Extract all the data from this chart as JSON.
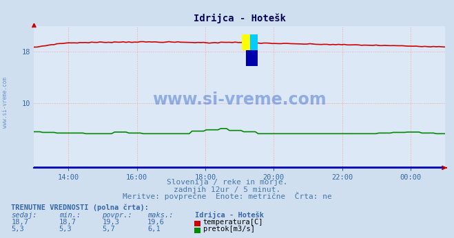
{
  "title": "Idrijca - Hotešk",
  "bg_color": "#d0dff0",
  "plot_bg_color": "#dce8f5",
  "grid_color": "#ff9999",
  "x_ticks_labels": [
    "14:00",
    "16:00",
    "18:00",
    "20:00",
    "22:00",
    "00:00"
  ],
  "x_ticks_fractions": [
    0.0833,
    0.25,
    0.4167,
    0.5833,
    0.75,
    0.9167
  ],
  "y_ticks": [
    10,
    18
  ],
  "ylim": [
    0,
    22
  ],
  "xlim_max": 143,
  "temp_color": "#cc0000",
  "flow_color": "#008800",
  "height_color": "#0000bb",
  "subtitle1": "Slovenija / reke in morje.",
  "subtitle2": "zadnjih 12ur / 5 minut.",
  "subtitle3": "Meritve: povprečne  Enote: metrične  Črta: ne",
  "table_header": "TRENUTNE VREDNOSTI (polna črta):",
  "col_headers": [
    "sedaj:",
    "min.:",
    "povpr.:",
    "maks.:"
  ],
  "col_station": "Idrijca - Hotešk",
  "row1_values": [
    "18,7",
    "18,7",
    "19,3",
    "19,6"
  ],
  "row1_label": "temperatura[C]",
  "row1_color": "#cc0000",
  "row2_values": [
    "5,3",
    "5,3",
    "5,7",
    "6,1"
  ],
  "row2_label": "pretok[m3/s]",
  "row2_color": "#008800",
  "watermark": "www.si-vreme.com",
  "watermark_color": "#3366cc",
  "watermark_alpha": 0.45,
  "n_points": 144,
  "logo_colors": [
    "#ffff00",
    "#00ccff",
    "#0000aa"
  ],
  "axis_arrow_color": "#cc0000",
  "side_label": "www.si-vreme.com",
  "side_label_color": "#4477bb"
}
